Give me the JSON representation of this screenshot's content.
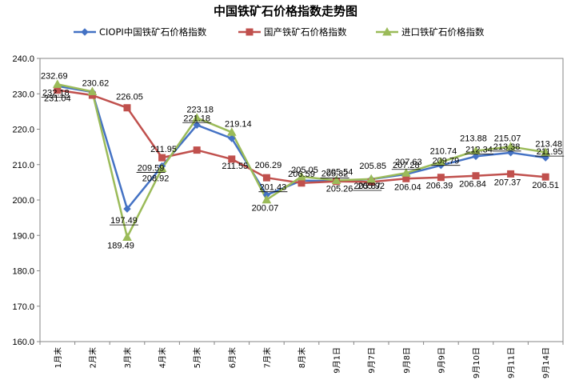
{
  "chart_data": {
    "type": "line",
    "title": "中国铁矿石价格指数走势图",
    "categories": [
      "1月末",
      "2月末",
      "3月末",
      "4月末",
      "5月末",
      "6月末",
      "7月末",
      "8月末",
      "9月1日",
      "9月7日",
      "9月8日",
      "9月9日",
      "9月10日",
      "9月11日",
      "9月14日"
    ],
    "y_ticks": [
      "240.0",
      "230.0",
      "220.0",
      "210.0",
      "200.0",
      "190.0",
      "180.0",
      "170.0",
      "160.0"
    ],
    "ylim": [
      160,
      240
    ],
    "grid": false,
    "legend_position": "top",
    "series": [
      {
        "name": "CIOPI中国铁矿石价格指数",
        "color": "#4472C4",
        "marker": "diamond",
        "values": [
          232.18,
          230.5,
          197.49,
          209.59,
          221.18,
          217.4,
          201.43,
          205.5,
          205.32,
          205.87,
          207.28,
          209.79,
          212.34,
          213.38,
          211.95
        ],
        "labels": [
          "232.18",
          "",
          "197.49",
          "209.59",
          "221.18",
          "",
          "201.43",
          "",
          "205.32",
          "205.87",
          "207.28",
          "209.79",
          "212.34",
          "213.38",
          "211.95"
        ]
      },
      {
        "name": "国产铁矿石价格指数",
        "color": "#C0504D",
        "marker": "square",
        "values": [
          231.04,
          229.6,
          226.05,
          211.95,
          214.1,
          211.55,
          206.29,
          204.8,
          205.26,
          205.1,
          206.04,
          206.39,
          206.84,
          207.37,
          206.51
        ],
        "labels": [
          "231.04",
          "",
          "226.05",
          "211.95",
          "",
          "211.55",
          "206.29",
          "",
          "205.26",
          "",
          "206.04",
          "206.39",
          "206.84",
          "207.37",
          "206.51"
        ]
      },
      {
        "name": "进口铁矿石价格指数",
        "color": "#9BBB59",
        "marker": "triangle",
        "values": [
          232.69,
          230.62,
          189.49,
          208.92,
          223.18,
          219.14,
          200.07,
          206.59,
          205.54,
          205.92,
          207.63,
          210.74,
          213.88,
          215.07,
          213.48
        ],
        "labels": [
          "232.69",
          "230.62",
          "189.49",
          "208.92",
          "223.18",
          "219.14",
          "200.07",
          "206.59",
          "205.54",
          "205.92",
          "207.63",
          "210.74",
          "213.88",
          "215.07",
          "213.48"
        ]
      }
    ],
    "extra_labels": [
      "205.05",
      "205.85"
    ]
  }
}
